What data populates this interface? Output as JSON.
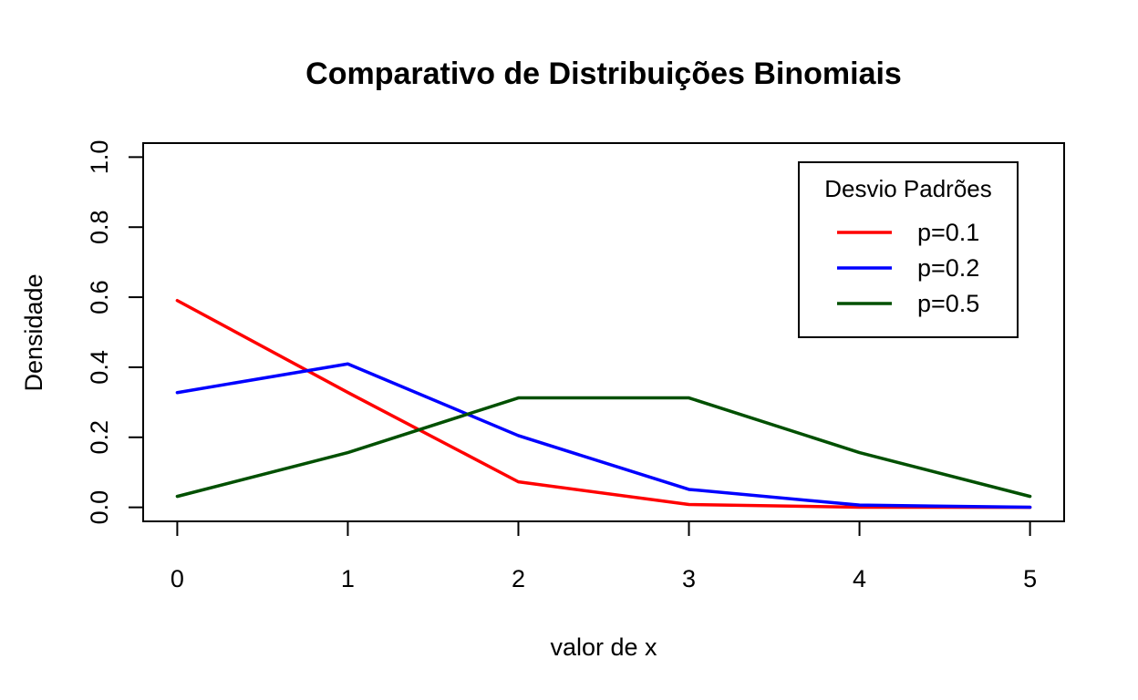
{
  "chart_data": {
    "type": "line",
    "title": "Comparativo de Distribuições Binomiais",
    "xlabel": "valor de x",
    "ylabel": "Densidade",
    "x": [
      0,
      1,
      2,
      3,
      4,
      5
    ],
    "xlim": [
      -0.2,
      5.2
    ],
    "ylim": [
      -0.04,
      1.04
    ],
    "x_ticks": [
      "0",
      "1",
      "2",
      "3",
      "4",
      "5"
    ],
    "y_ticks": [
      "0.0",
      "0.2",
      "0.4",
      "0.6",
      "0.8",
      "1.0"
    ],
    "grid": false,
    "legend": {
      "title": "Desvio Padrões",
      "position": "top-right"
    },
    "series": [
      {
        "name": "p=0.1",
        "color": "#ff0000",
        "values": [
          0.59049,
          0.32805,
          0.0729,
          0.0081,
          0.00045,
          1e-05
        ]
      },
      {
        "name": "p=0.2",
        "color": "#0000ff",
        "values": [
          0.32768,
          0.4096,
          0.2048,
          0.0512,
          0.0064,
          0.00032
        ]
      },
      {
        "name": "p=0.5",
        "color": "#005000",
        "values": [
          0.03125,
          0.15625,
          0.3125,
          0.3125,
          0.15625,
          0.03125
        ]
      }
    ]
  }
}
